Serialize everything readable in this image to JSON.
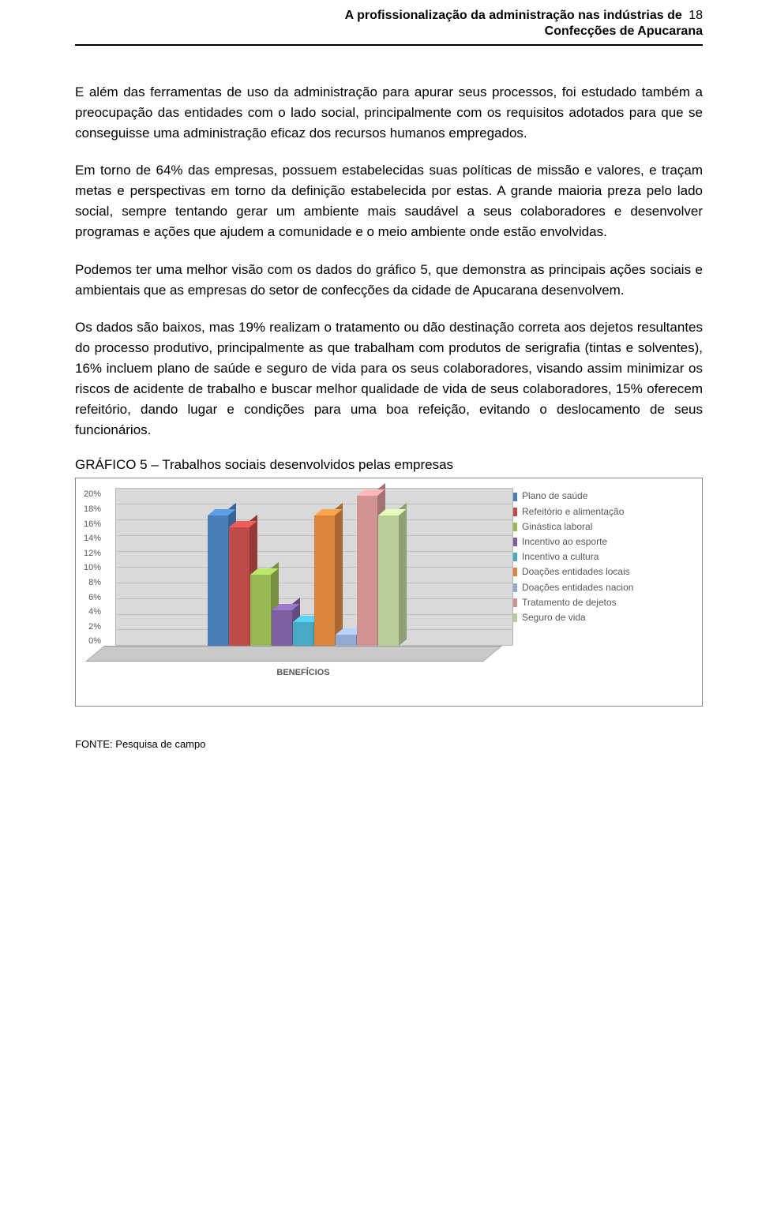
{
  "header": {
    "line1": "A profissionalização da administração nas indústrias de",
    "line2": "Confecções de Apucarana",
    "page_number": "18"
  },
  "paragraphs": {
    "p1": "E além das ferramentas de uso da administração para apurar seus processos, foi estudado também a preocupação das entidades com o lado social, principalmente com os requisitos adotados para que se conseguisse uma administração eficaz dos recursos humanos empregados.",
    "p2": "Em torno de 64% das empresas, possuem estabelecidas suas políticas de missão e valores, e traçam metas e perspectivas em torno da definição estabelecida por estas. A grande maioria preza pelo lado social, sempre tentando gerar um ambiente mais saudável a seus colaboradores e desenvolver programas e ações que ajudem a comunidade e o meio ambiente onde estão envolvidas.",
    "p3": "Podemos ter uma melhor visão com os dados do gráfico 5, que demonstra as principais ações sociais e ambientais que as empresas do setor de confecções da cidade de Apucarana desenvolvem.",
    "p4": "Os dados são baixos, mas 19% realizam o tratamento ou dão destinação correta aos dejetos resultantes do processo produtivo, principalmente as que trabalham com produtos de serigrafia (tintas e solventes), 16% incluem plano de saúde e seguro de vida para os seus colaboradores, visando assim minimizar os riscos de acidente de trabalho e buscar melhor qualidade de vida de seus colaboradores, 15% oferecem refeitório, dando lugar e condições para uma boa refeição, evitando o deslocamento de seus funcionários."
  },
  "chart": {
    "title": "GRÁFICO 5 – Trabalhos sociais desenvolvidos pelas empresas",
    "type": "bar-3d",
    "y_ticks": [
      "20%",
      "18%",
      "16%",
      "14%",
      "12%",
      "10%",
      "8%",
      "6%",
      "4%",
      "2%",
      "0%"
    ],
    "y_max": 20,
    "x_label": "BENEFÍCIOS",
    "back_color": "#d9d9d9",
    "floor_color": "#c9c9c9",
    "grid_color": "#bfbfbf",
    "series": [
      {
        "label": "Plano de saúde",
        "value": 16.5,
        "color": "#4a7ebb"
      },
      {
        "label": "Refeitório e alimentação",
        "value": 15.0,
        "color": "#be4b48"
      },
      {
        "label": "Ginástica laboral",
        "value": 9.0,
        "color": "#98b954"
      },
      {
        "label": "Incentivo ao esporte",
        "value": 4.5,
        "color": "#7d60a0"
      },
      {
        "label": "Incentivo a cultura",
        "value": 3.0,
        "color": "#46aac5"
      },
      {
        "label": "Doações entidades locais",
        "value": 16.5,
        "color": "#db843d"
      },
      {
        "label": "Doações entidades nacion",
        "value": 1.4,
        "color": "#93a9d0"
      },
      {
        "label": "Tratamento de dejetos",
        "value": 19.0,
        "color": "#d19392"
      },
      {
        "label": "Seguro de vida",
        "value": 16.5,
        "color": "#b9cd96"
      }
    ]
  },
  "source": "FONTE: Pesquisa de campo"
}
